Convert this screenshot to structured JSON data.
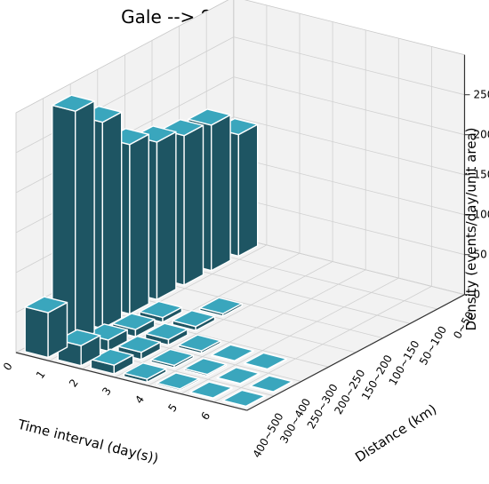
{
  "chart_data": {
    "type": "bar3d",
    "title": "Gale --> Sandstorm",
    "xlabel": "Time interval (day(s))",
    "ylabel": "Distance (km)",
    "zlabel": "Density (events/day/unit area)",
    "x_ticks": [
      "0",
      "1",
      "2",
      "3",
      "4",
      "5",
      "6"
    ],
    "y_categories": [
      "0~50",
      "50~100",
      "100~150",
      "150~200",
      "200~250",
      "250~300",
      "300~400",
      "400~500"
    ],
    "z_ticks": [
      0,
      50,
      100,
      150,
      200,
      250
    ],
    "zlim": [
      0,
      300
    ],
    "grid": true,
    "colors": {
      "side": "#1e5563",
      "top": "#3aa6bd",
      "edge": "#ffffff",
      "pane": "#f2f2f2",
      "grid": "#d0d0d0"
    },
    "bars": [
      {
        "x": 0,
        "y": "0~50",
        "value": 152
      },
      {
        "x": 0,
        "y": "50~100",
        "value": 182
      },
      {
        "x": 0,
        "y": "100~150",
        "value": 187
      },
      {
        "x": 0,
        "y": "150~200",
        "value": 197
      },
      {
        "x": 0,
        "y": "200~250",
        "value": 212
      },
      {
        "x": 0,
        "y": "250~300",
        "value": 258
      },
      {
        "x": 0,
        "y": "300~400",
        "value": 290
      },
      {
        "x": 0,
        "y": "400~500",
        "value": 56
      },
      {
        "x": 1,
        "y": "400~500",
        "value": 25
      },
      {
        "x": 1,
        "y": "300~400",
        "value": 14
      },
      {
        "x": 1,
        "y": "250~300",
        "value": 9
      },
      {
        "x": 1,
        "y": "200~250",
        "value": 6
      },
      {
        "x": 2,
        "y": "400~500",
        "value": 11
      },
      {
        "x": 2,
        "y": "300~400",
        "value": 9
      },
      {
        "x": 2,
        "y": "250~300",
        "value": 7
      },
      {
        "x": 2,
        "y": "200~250",
        "value": 5
      },
      {
        "x": 2,
        "y": "150~200",
        "value": 3
      },
      {
        "x": 3,
        "y": "400~500",
        "value": 4
      },
      {
        "x": 3,
        "y": "300~400",
        "value": 3
      },
      {
        "x": 3,
        "y": "250~300",
        "value": 3
      },
      {
        "x": 4,
        "y": "400~500",
        "value": 2
      },
      {
        "x": 4,
        "y": "300~400",
        "value": 2
      },
      {
        "x": 4,
        "y": "250~300",
        "value": 1
      },
      {
        "x": 5,
        "y": "400~500",
        "value": 1
      },
      {
        "x": 5,
        "y": "300~400",
        "value": 1
      },
      {
        "x": 5,
        "y": "250~300",
        "value": 1
      },
      {
        "x": 6,
        "y": "400~500",
        "value": 1
      },
      {
        "x": 6,
        "y": "300~400",
        "value": 1
      }
    ]
  }
}
